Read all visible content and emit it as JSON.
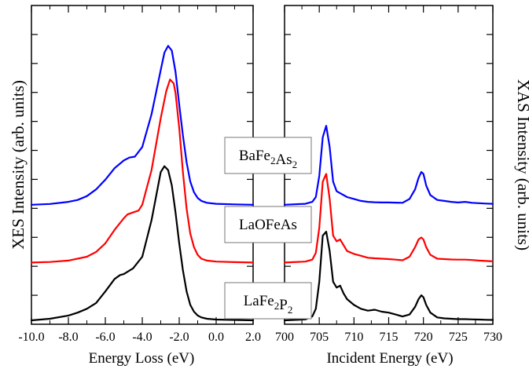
{
  "chart_data": [
    {
      "type": "line",
      "xlabel": "Energy Loss (eV)",
      "ylabel": "XES Intensity (arb. units)",
      "xlim": [
        -10.0,
        2.0
      ],
      "xticks": [
        "-10.0",
        "-8.0",
        "-6.0",
        "-4.0",
        "-2.0",
        "0.0",
        "2.0"
      ],
      "y_units": "arbitrary",
      "series": [
        {
          "name": "BaFe2As2",
          "color": "#0000ff",
          "offset": 0.6,
          "x": [
            -10.0,
            -9.0,
            -8.0,
            -7.5,
            -7.0,
            -6.5,
            -6.0,
            -5.5,
            -5.0,
            -4.7,
            -4.4,
            -4.0,
            -3.5,
            -3.0,
            -2.8,
            -2.6,
            -2.4,
            -2.2,
            -2.0,
            -1.8,
            -1.6,
            -1.4,
            -1.2,
            -1.0,
            -0.8,
            -0.5,
            0.0,
            1.0,
            2.0
          ],
          "y": [
            0.0,
            0.004,
            0.015,
            0.025,
            0.045,
            0.08,
            0.13,
            0.19,
            0.23,
            0.245,
            0.25,
            0.3,
            0.47,
            0.7,
            0.79,
            0.825,
            0.8,
            0.69,
            0.52,
            0.36,
            0.22,
            0.12,
            0.065,
            0.035,
            0.02,
            0.01,
            0.005,
            0.002,
            0.0
          ]
        },
        {
          "name": "LaOFeAs",
          "color": "#ff0000",
          "offset": 0.3,
          "x": [
            -10.0,
            -9.0,
            -8.0,
            -7.0,
            -6.5,
            -6.0,
            -5.5,
            -5.0,
            -4.8,
            -4.5,
            -4.2,
            -4.0,
            -3.5,
            -3.0,
            -2.7,
            -2.5,
            -2.3,
            -2.2,
            -2.0,
            -1.8,
            -1.6,
            -1.4,
            -1.2,
            -1.0,
            -0.8,
            -0.5,
            0.0,
            1.0,
            2.0
          ],
          "y": [
            0.0,
            0.003,
            0.01,
            0.03,
            0.055,
            0.1,
            0.17,
            0.23,
            0.25,
            0.26,
            0.27,
            0.3,
            0.48,
            0.75,
            0.89,
            0.95,
            0.93,
            0.88,
            0.7,
            0.47,
            0.28,
            0.15,
            0.08,
            0.04,
            0.02,
            0.01,
            0.005,
            0.002,
            0.0
          ]
        },
        {
          "name": "LaFe2P2",
          "color": "#000000",
          "offset": 0.0,
          "x": [
            -10.0,
            -9.0,
            -8.0,
            -7.5,
            -7.0,
            -6.5,
            -6.0,
            -5.5,
            -5.2,
            -5.0,
            -4.5,
            -4.0,
            -3.5,
            -3.0,
            -2.8,
            -2.6,
            -2.4,
            -2.2,
            -2.0,
            -1.8,
            -1.6,
            -1.4,
            -1.2,
            -1.0,
            -0.8,
            -0.5,
            0.0,
            1.0,
            2.0
          ],
          "y": [
            0.0,
            0.008,
            0.025,
            0.04,
            0.06,
            0.09,
            0.15,
            0.215,
            0.235,
            0.24,
            0.27,
            0.33,
            0.52,
            0.77,
            0.8,
            0.78,
            0.7,
            0.56,
            0.4,
            0.26,
            0.15,
            0.08,
            0.045,
            0.025,
            0.015,
            0.008,
            0.004,
            0.002,
            0.0
          ]
        }
      ]
    },
    {
      "type": "line",
      "xlabel": "Incident Energy (eV)",
      "ylabel": "XAS Intensity (arb. units)",
      "xlim": [
        700,
        730
      ],
      "xticks": [
        "700",
        "705",
        "710",
        "715",
        "720",
        "725",
        "730"
      ],
      "y_units": "arbitrary",
      "series": [
        {
          "name": "BaFe2As2",
          "color": "#0000ff",
          "offset": 0.6,
          "x": [
            700,
            703,
            704,
            704.5,
            705,
            705.5,
            706,
            706.5,
            707,
            707.5,
            708,
            708.5,
            709,
            710,
            711,
            712,
            713,
            714,
            715,
            716,
            717,
            718,
            718.8,
            719.3,
            719.7,
            720,
            720.4,
            721,
            722,
            723,
            724,
            725,
            726,
            727,
            728,
            729,
            730
          ],
          "y": [
            0.0,
            0.005,
            0.015,
            0.04,
            0.15,
            0.35,
            0.41,
            0.3,
            0.12,
            0.07,
            0.06,
            0.05,
            0.04,
            0.03,
            0.02,
            0.015,
            0.013,
            0.012,
            0.012,
            0.011,
            0.01,
            0.03,
            0.08,
            0.14,
            0.17,
            0.16,
            0.1,
            0.05,
            0.025,
            0.02,
            0.015,
            0.012,
            0.015,
            0.01,
            0.008,
            0.006,
            0.005
          ]
        },
        {
          "name": "LaOFeAs",
          "color": "#ff0000",
          "offset": 0.3,
          "x": [
            700,
            703,
            704,
            704.5,
            705,
            705.5,
            706,
            706.5,
            707,
            707.5,
            708,
            708.5,
            709,
            710,
            711,
            712,
            713,
            714,
            715,
            716,
            717,
            718,
            718.8,
            719.3,
            719.7,
            720,
            720.4,
            721,
            722,
            723,
            724,
            725,
            726,
            727,
            728,
            729,
            730
          ],
          "y": [
            0.0,
            0.005,
            0.015,
            0.05,
            0.18,
            0.42,
            0.46,
            0.33,
            0.14,
            0.11,
            0.12,
            0.09,
            0.06,
            0.045,
            0.035,
            0.025,
            0.022,
            0.02,
            0.018,
            0.015,
            0.012,
            0.03,
            0.08,
            0.12,
            0.13,
            0.12,
            0.08,
            0.04,
            0.02,
            0.018,
            0.016,
            0.015,
            0.015,
            0.013,
            0.01,
            0.008,
            0.006
          ]
        },
        {
          "name": "LaFe2P2",
          "color": "#000000",
          "offset": 0.0,
          "x": [
            700,
            703,
            704,
            704.5,
            705,
            705.5,
            706,
            706.5,
            707,
            707.5,
            708,
            708.5,
            709,
            710,
            711,
            712,
            713,
            714,
            715,
            716,
            717,
            718,
            718.8,
            719.3,
            719.7,
            720,
            720.4,
            721,
            722,
            723,
            724,
            725,
            726,
            727,
            728,
            729,
            730
          ],
          "y": [
            0.0,
            0.005,
            0.02,
            0.06,
            0.2,
            0.44,
            0.46,
            0.36,
            0.2,
            0.17,
            0.18,
            0.14,
            0.11,
            0.08,
            0.06,
            0.05,
            0.055,
            0.045,
            0.04,
            0.03,
            0.02,
            0.03,
            0.07,
            0.11,
            0.13,
            0.12,
            0.08,
            0.04,
            0.015,
            0.01,
            0.008,
            0.006,
            0.006,
            0.005,
            0.004,
            0.003,
            0.002
          ]
        }
      ]
    }
  ],
  "labels": {
    "BaFe2As2": {
      "base": "BaFe",
      "sub1": "2",
      "mid": "As",
      "sub2": "2"
    },
    "LaOFeAs": {
      "base": "LaOFeAs",
      "sub1": "",
      "mid": "",
      "sub2": ""
    },
    "LaFe2P2": {
      "base": "LaFe",
      "sub1": "2",
      "mid": "P",
      "sub2": "2"
    }
  }
}
